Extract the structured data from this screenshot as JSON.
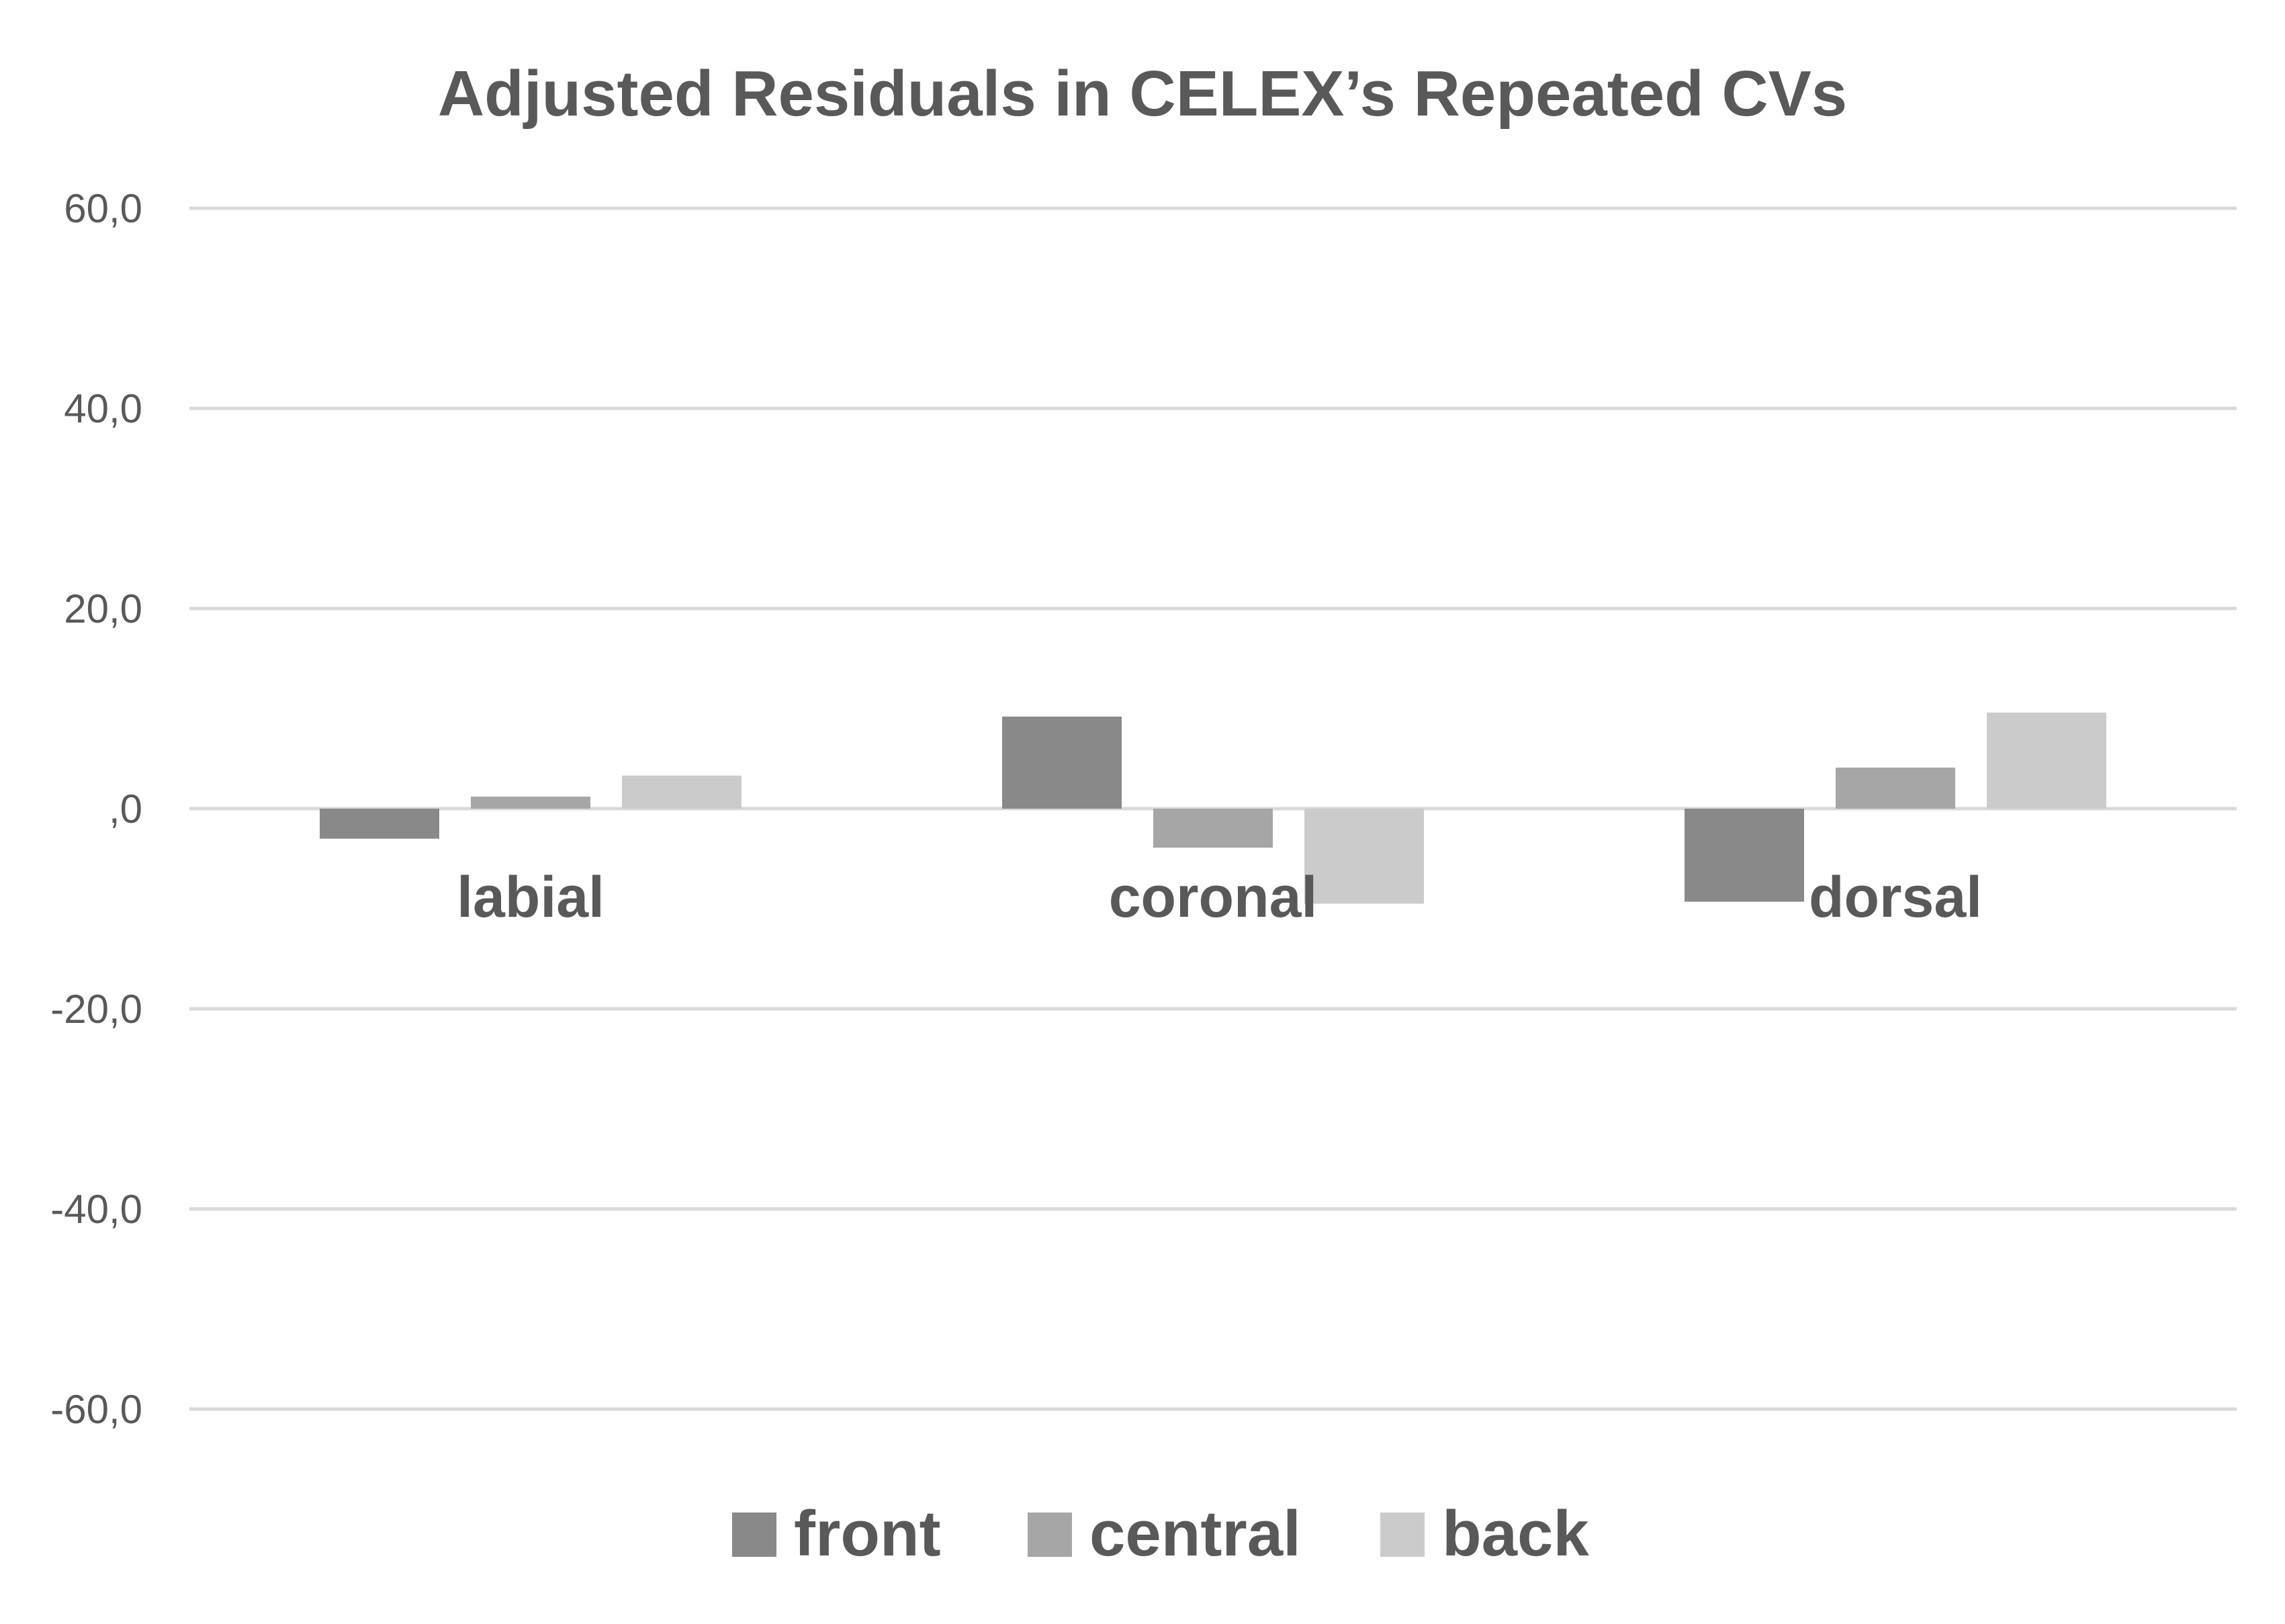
{
  "chart_data": {
    "type": "bar",
    "title": "Adjusted Residuals in CELEX’s Repeated CVs",
    "xlabel": "",
    "ylabel": "",
    "categories": [
      "labial",
      "coronal",
      "dorsal"
    ],
    "series": [
      {
        "name": "front",
        "values": [
          -3.0,
          9.2,
          -9.3
        ],
        "color": "#898989"
      },
      {
        "name": "central",
        "values": [
          1.2,
          -3.9,
          4.1
        ],
        "color": "#a6a6a6"
      },
      {
        "name": "back",
        "values": [
          3.3,
          -9.5,
          9.6
        ],
        "color": "#cbcbcb"
      }
    ],
    "ylim": [
      -60,
      60
    ],
    "yticks": [
      60,
      40,
      20,
      0,
      -20,
      -40,
      -60
    ],
    "ytick_labels": [
      "60,0",
      "40,0",
      "20,0",
      ",0",
      "-20,0",
      "-40,0",
      "-60,0"
    ],
    "grid": true,
    "legend_position": "bottom"
  }
}
